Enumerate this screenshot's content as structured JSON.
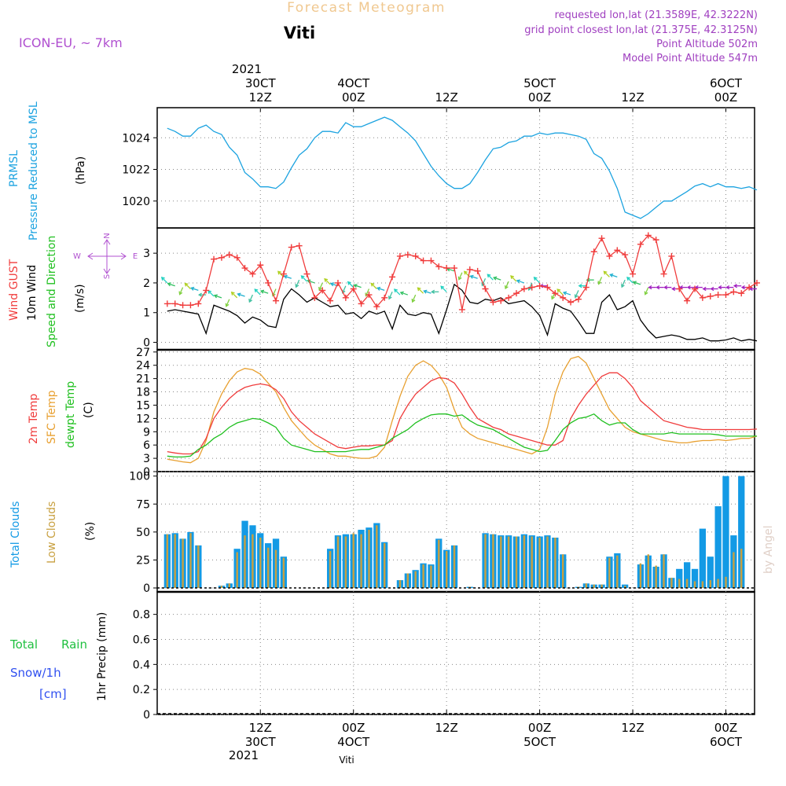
{
  "header": {
    "title": "Forecast Meteogram",
    "location": "Viti",
    "model": "ICON-EU, ~ 7km",
    "requested": "requested lon,lat (21.3589E, 42.3222N)",
    "gridpoint": "grid point closest lon,lat (21.375E, 42.3125N)",
    "point_alt": "Point Altitude 502m",
    "model_alt": "Model Point Altitude 547m",
    "footer_location": "Viti",
    "watermark": "by Angel"
  },
  "colors": {
    "pressure": "#1ca3e0",
    "gust": "#f03c3c",
    "wind": "#000000",
    "temp2m": "#f03c3c",
    "sfctemp": "#e8a030",
    "dewpt": "#20c020",
    "total_clouds": "#139ae5",
    "low_clouds": "#c8a040",
    "rain": "#20c040",
    "snow": "#3050f0",
    "title": "#f0c890",
    "info": "#a040c0"
  },
  "time_axis": {
    "top_year": "2021",
    "bottom_year": "2021",
    "labels": [
      {
        "t": 12,
        "top": "30CT",
        "time": "12Z"
      },
      {
        "t": 24,
        "top": "4OCT",
        "time": "00Z"
      },
      {
        "t": 36,
        "top": "",
        "time": "12Z"
      },
      {
        "t": 48,
        "top": "5OCT",
        "time": "00Z"
      },
      {
        "t": 60,
        "top": "",
        "time": "12Z"
      },
      {
        "t": 72,
        "top": "6OCT",
        "time": "00Z"
      }
    ],
    "bottom_labels": [
      {
        "t": 12,
        "time": "12Z",
        "date": "30CT"
      },
      {
        "t": 24,
        "time": "00Z",
        "date": "4OCT"
      },
      {
        "t": 36,
        "time": "12Z",
        "date": ""
      },
      {
        "t": 48,
        "time": "00Z",
        "date": "5OCT"
      },
      {
        "t": 60,
        "time": "12Z",
        "date": ""
      },
      {
        "t": 72,
        "time": "00Z",
        "date": "6OCT"
      }
    ]
  },
  "panel_labels": {
    "pressure": [
      "PRMSL",
      "Pressure Reduced to MSL",
      "(hPa)"
    ],
    "wind": [
      "Wind GUST",
      "10m Wind",
      "Speed and Direction",
      "(m/s)"
    ],
    "compass": {
      "n": "N",
      "s": "S",
      "w": "W",
      "e": "E"
    },
    "temp": [
      "2m Temp",
      "SFC Temp",
      "dewpt Temp",
      "(C)"
    ],
    "clouds": [
      "Total Clouds",
      "Low Clouds",
      "(%)"
    ],
    "precip": [
      "Total",
      "Rain",
      "Snow/1h",
      "[cm]",
      "1hr Precip (mm)"
    ]
  },
  "chart_data": [
    {
      "type": "line",
      "name": "PRMSL",
      "ylabel": "(hPa)",
      "yticks": [
        1020,
        1022,
        1024
      ],
      "ylim": [
        1018.3,
        1025.9
      ],
      "x": [
        0,
        1,
        2,
        3,
        4,
        5,
        6,
        7,
        8,
        9,
        10,
        11,
        12,
        13,
        14,
        15,
        16,
        17,
        18,
        19,
        20,
        21,
        22,
        23,
        24,
        25,
        26,
        27,
        28,
        29,
        30,
        31,
        32,
        33,
        34,
        35,
        36,
        37,
        38,
        39,
        40,
        41,
        42,
        43,
        44,
        45,
        46,
        47,
        48,
        49,
        50,
        51,
        52,
        53,
        54,
        55,
        56,
        57,
        58,
        59,
        60,
        61,
        62,
        63,
        64,
        65,
        66,
        67,
        68,
        69,
        70,
        71,
        72,
        73,
        74,
        75,
        76
      ],
      "y": [
        1024.6,
        1024.4,
        1024.1,
        1024.1,
        1024.6,
        1024.8,
        1024.4,
        1024.2,
        1023.4,
        1022.9,
        1021.8,
        1021.4,
        1020.9,
        1020.9,
        1020.8,
        1021.2,
        1022.1,
        1022.9,
        1023.3,
        1024.0,
        1024.4,
        1024.4,
        1024.3,
        1024.95,
        1024.7,
        1024.7,
        1024.9,
        1025.1,
        1025.3,
        1025.1,
        1024.7,
        1024.3,
        1023.8,
        1023.0,
        1022.2,
        1021.6,
        1021.1,
        1020.8,
        1020.8,
        1021.1,
        1021.8,
        1022.6,
        1023.3,
        1023.4,
        1023.7,
        1023.8,
        1024.1,
        1024.1,
        1024.3,
        1024.2,
        1024.3,
        1024.3,
        1024.2,
        1024.1,
        1023.9,
        1023.0,
        1022.7,
        1021.9,
        1020.8,
        1019.3,
        1019.1,
        1018.9,
        1019.2,
        1019.6,
        1020.0,
        1020.0,
        1020.3,
        1020.6,
        1020.95,
        1021.1,
        1020.9,
        1021.1,
        1020.9,
        1020.9,
        1020.8,
        1020.9,
        1020.7
      ]
    },
    {
      "type": "line",
      "name": "Wind",
      "ylabel": "(m/s)",
      "yticks": [
        0,
        1,
        2,
        3
      ],
      "ylim": [
        -0.25,
        3.85
      ],
      "x": [
        0,
        1,
        2,
        3,
        4,
        5,
        6,
        7,
        8,
        9,
        10,
        11,
        12,
        13,
        14,
        15,
        16,
        17,
        18,
        19,
        20,
        21,
        22,
        23,
        24,
        25,
        26,
        27,
        28,
        29,
        30,
        31,
        32,
        33,
        34,
        35,
        36,
        37,
        38,
        39,
        40,
        41,
        42,
        43,
        44,
        45,
        46,
        47,
        48,
        49,
        50,
        51,
        52,
        53,
        54,
        55,
        56,
        57,
        58,
        59,
        60,
        61,
        62,
        63,
        64,
        65,
        66,
        67,
        68,
        69,
        70,
        71,
        72,
        73,
        74,
        75,
        76
      ],
      "gust": [
        1.3,
        1.3,
        1.25,
        1.25,
        1.3,
        1.75,
        2.8,
        2.85,
        2.95,
        2.85,
        2.5,
        2.3,
        2.6,
        2.0,
        1.4,
        2.3,
        3.2,
        3.25,
        2.3,
        1.5,
        1.75,
        1.4,
        2.0,
        1.5,
        1.8,
        1.3,
        1.6,
        1.2,
        1.5,
        2.2,
        2.9,
        2.95,
        2.9,
        2.75,
        2.75,
        2.55,
        2.5,
        2.5,
        1.1,
        2.45,
        2.4,
        1.8,
        1.35,
        1.4,
        1.5,
        1.65,
        1.8,
        1.85,
        1.9,
        1.85,
        1.65,
        1.5,
        1.35,
        1.45,
        1.85,
        3.05,
        3.5,
        2.9,
        3.1,
        2.95,
        2.3,
        3.3,
        3.6,
        3.45,
        2.3,
        2.9,
        1.8,
        1.4,
        1.8,
        1.5,
        1.55,
        1.6,
        1.6,
        1.7,
        1.65,
        1.85,
        2.0
      ],
      "wind": [
        1.05,
        1.1,
        1.05,
        1.0,
        0.95,
        0.3,
        1.25,
        1.15,
        1.05,
        0.9,
        0.65,
        0.85,
        0.75,
        0.55,
        0.5,
        1.45,
        1.8,
        1.6,
        1.35,
        1.5,
        1.35,
        1.2,
        1.25,
        0.95,
        1.0,
        0.8,
        1.05,
        0.95,
        1.05,
        0.45,
        1.25,
        0.95,
        0.9,
        1.0,
        0.95,
        0.3,
        1.1,
        1.95,
        1.75,
        1.35,
        1.3,
        1.45,
        1.4,
        1.5,
        1.3,
        1.35,
        1.4,
        1.2,
        0.9,
        0.25,
        1.3,
        1.15,
        1.05,
        0.7,
        0.3,
        0.3,
        1.35,
        1.6,
        1.1,
        1.2,
        1.4,
        0.75,
        0.4,
        0.15,
        0.2,
        0.25,
        0.2,
        0.1,
        0.1,
        0.15,
        0.05,
        0.05,
        0.08,
        0.15,
        0.05,
        0.1,
        0.05
      ],
      "arrow_level": [
        2.0,
        1.9,
        1.85,
        1.8,
        1.75,
        1.6,
        1.55,
        1.5,
        1.45,
        1.5,
        1.55,
        1.6,
        1.6,
        1.65,
        1.8,
        2.2,
        2.15,
        2.1,
        2.05,
        2.0,
        2.0,
        1.95,
        1.9,
        1.9,
        1.85,
        1.85,
        1.8,
        1.8,
        1.75,
        1.7,
        1.6,
        1.6,
        1.6,
        1.65,
        1.65,
        1.7,
        1.7,
        2.4,
        2.35,
        2.2,
        2.15,
        2.15,
        2.1,
        2.1,
        2.05,
        2.05,
        2.0,
        2.0,
        2.0,
        1.9,
        1.7,
        1.6,
        1.6,
        1.75,
        1.9,
        2.1,
        2.2,
        2.2,
        2.2,
        2.1,
        2.0,
        1.95,
        1.85,
        1.85,
        1.85,
        1.85,
        1.8,
        1.85,
        1.85,
        1.85,
        1.8,
        1.8,
        1.85,
        1.85,
        1.9,
        1.85,
        1.8
      ]
    },
    {
      "type": "line",
      "name": "Temperature",
      "ylabel": "(C)",
      "yticks": [
        0,
        3,
        6,
        9,
        12,
        15,
        18,
        21,
        24,
        27
      ],
      "ylim": [
        0,
        27.5
      ],
      "x": [
        0,
        1,
        2,
        3,
        4,
        5,
        6,
        7,
        8,
        9,
        10,
        11,
        12,
        13,
        14,
        15,
        16,
        17,
        18,
        19,
        20,
        21,
        22,
        23,
        24,
        25,
        26,
        27,
        28,
        29,
        30,
        31,
        32,
        33,
        34,
        35,
        36,
        37,
        38,
        39,
        40,
        41,
        42,
        43,
        44,
        45,
        46,
        47,
        48,
        49,
        50,
        51,
        52,
        53,
        54,
        55,
        56,
        57,
        58,
        59,
        60,
        61,
        62,
        63,
        64,
        65,
        66,
        67,
        68,
        69,
        70,
        71,
        72,
        73,
        74,
        75,
        76
      ],
      "temp2m": [
        4.5,
        4.2,
        4.0,
        4.0,
        4.5,
        7.5,
        12.0,
        14.5,
        16.5,
        18.0,
        19.0,
        19.5,
        19.8,
        19.5,
        18.5,
        16.5,
        13.5,
        11.5,
        10.0,
        8.5,
        7.5,
        6.5,
        5.5,
        5.2,
        5.5,
        5.8,
        5.8,
        6.0,
        6.0,
        7.0,
        12.0,
        15.0,
        17.5,
        19.0,
        20.5,
        21.2,
        21.0,
        20.0,
        17.5,
        14.5,
        12.0,
        11.0,
        10.0,
        9.5,
        8.5,
        8.0,
        7.5,
        7.0,
        6.5,
        6.0,
        6.0,
        7.0,
        12.0,
        15.0,
        17.5,
        19.5,
        21.5,
        22.3,
        22.3,
        21.0,
        19.0,
        16.0,
        14.5,
        13.0,
        11.5,
        11.0,
        10.5,
        10.0,
        9.8,
        9.5,
        9.5,
        9.5,
        9.5,
        9.5,
        9.5,
        9.5,
        9.6
      ],
      "sfctemp": [
        2.8,
        2.5,
        2.2,
        2.0,
        3.0,
        7.0,
        13.5,
        17.5,
        20.5,
        22.5,
        23.3,
        23.0,
        22.0,
        20.0,
        18.0,
        14.5,
        11.5,
        9.5,
        7.5,
        6.0,
        5.0,
        4.0,
        3.5,
        3.5,
        3.2,
        3.0,
        3.0,
        3.5,
        5.5,
        11.5,
        17.0,
        21.5,
        24.0,
        25.0,
        24.0,
        22.0,
        19.0,
        14.0,
        10.0,
        8.5,
        7.5,
        7.0,
        6.5,
        6.0,
        5.5,
        5.0,
        4.5,
        4.0,
        5.0,
        10.0,
        17.5,
        22.5,
        25.5,
        26.0,
        24.5,
        21.0,
        17.5,
        14.0,
        12.0,
        10.0,
        9.0,
        8.5,
        8.0,
        7.5,
        7.0,
        6.8,
        6.5,
        6.5,
        6.8,
        7.0,
        7.0,
        7.2,
        7.0,
        7.2,
        7.5,
        7.5,
        8.0
      ],
      "dewpt": [
        3.5,
        3.3,
        3.3,
        3.5,
        5.0,
        6.0,
        7.5,
        8.5,
        10.0,
        11.0,
        11.5,
        12.0,
        11.8,
        11.0,
        10.0,
        7.5,
        6.0,
        5.5,
        5.0,
        4.5,
        4.5,
        4.5,
        4.5,
        4.5,
        4.8,
        5.0,
        5.0,
        5.5,
        6.0,
        7.5,
        8.5,
        9.5,
        11.0,
        12.0,
        12.8,
        13.0,
        13.0,
        12.5,
        12.8,
        11.5,
        10.5,
        10.0,
        9.5,
        8.5,
        7.5,
        6.5,
        5.5,
        5.0,
        4.5,
        4.8,
        7.0,
        9.5,
        11.0,
        12.0,
        12.3,
        13.0,
        11.5,
        10.5,
        11.0,
        11.0,
        9.5,
        8.5,
        8.5,
        8.5,
        8.5,
        8.8,
        8.5,
        8.5,
        8.5,
        8.5,
        8.5,
        8.3,
        8.0,
        8.0,
        8.0,
        8.0,
        8.0
      ]
    },
    {
      "type": "bar",
      "name": "Clouds",
      "ylabel": "(%)",
      "yticks": [
        0,
        25,
        50,
        75,
        100
      ],
      "ylim": [
        -3.5,
        104
      ],
      "x": [
        0,
        1,
        2,
        3,
        4,
        5,
        6,
        7,
        8,
        9,
        10,
        11,
        12,
        13,
        14,
        15,
        16,
        17,
        18,
        19,
        20,
        21,
        22,
        23,
        24,
        25,
        26,
        27,
        28,
        29,
        30,
        31,
        32,
        33,
        34,
        35,
        36,
        37,
        38,
        39,
        40,
        41,
        42,
        43,
        44,
        45,
        46,
        47,
        48,
        49,
        50,
        51,
        52,
        53,
        54,
        55,
        56,
        57,
        58,
        59,
        60,
        61,
        62,
        63,
        64,
        65,
        66,
        67,
        68,
        69,
        70,
        71,
        72,
        73,
        74,
        75,
        76
      ],
      "total_clouds": [
        48,
        49,
        44,
        50,
        38,
        0,
        0,
        2,
        4,
        35,
        60,
        56,
        49,
        40,
        44,
        28,
        0,
        0,
        0,
        0,
        0,
        35,
        47,
        48,
        48,
        52,
        54,
        58,
        41,
        0,
        7,
        13,
        16,
        22,
        21,
        44,
        34,
        38,
        0,
        1,
        0,
        49,
        48,
        47,
        47,
        46,
        48,
        47,
        46,
        47,
        45,
        30,
        0,
        1,
        4,
        3,
        3,
        28,
        31,
        3,
        0,
        21,
        29,
        19,
        30,
        9,
        17,
        23,
        17,
        53,
        28,
        73,
        100,
        47,
        100,
        0,
        0
      ],
      "low_clouds": [
        48,
        48,
        44,
        49,
        38,
        0,
        0,
        2,
        4,
        32,
        47,
        48,
        45,
        36,
        34,
        27,
        0,
        0,
        0,
        0,
        0,
        33,
        46,
        46,
        49,
        48,
        52,
        56,
        40,
        0,
        7,
        13,
        15,
        21,
        20,
        43,
        33,
        38,
        0,
        1,
        0,
        48,
        48,
        46,
        46,
        46,
        47,
        46,
        45,
        46,
        45,
        30,
        0,
        1,
        4,
        3,
        3,
        27,
        29,
        2,
        0,
        22,
        30,
        20,
        30,
        9,
        8,
        8,
        6,
        6,
        7,
        8,
        10,
        32,
        35,
        0,
        0
      ]
    },
    {
      "type": "bar",
      "name": "Precipitation",
      "ylabel": "1hr Precip (mm)",
      "yticks": [
        0,
        0.2,
        0.4,
        0.6,
        0.8
      ],
      "ylim": [
        0,
        0.98
      ],
      "x": [],
      "values": []
    }
  ]
}
